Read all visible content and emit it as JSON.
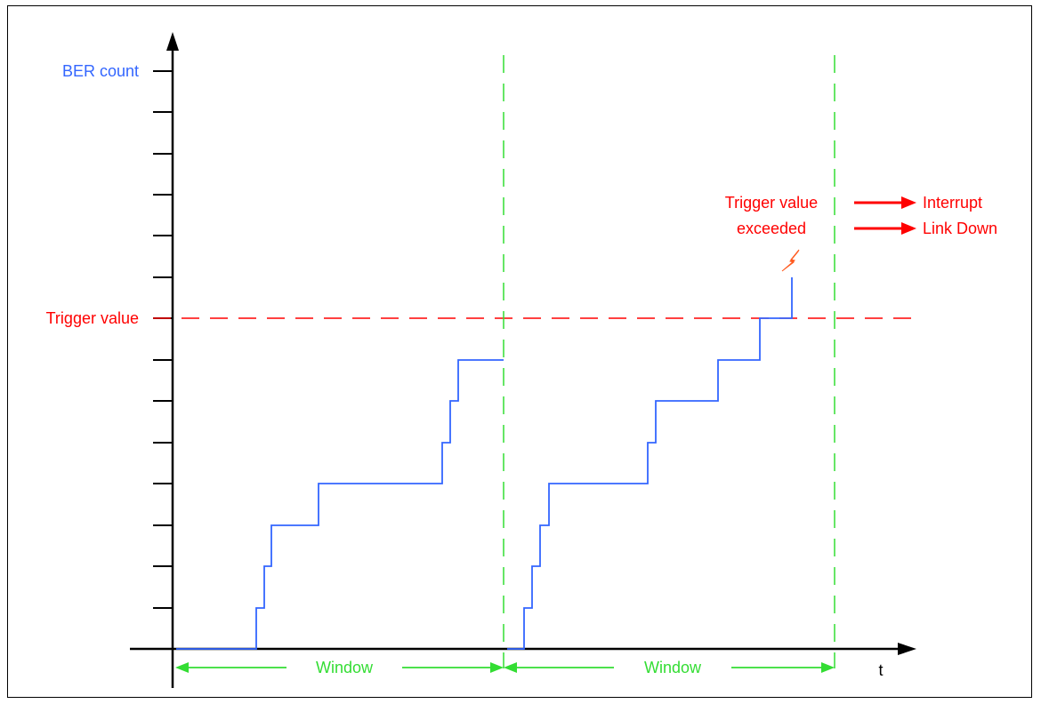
{
  "colors": {
    "axis": "#000000",
    "curve": "#3366ff",
    "trigger": "#ff0000",
    "window": "#33dd33",
    "lightning": "#ff5a1f"
  },
  "labels": {
    "y_axis": "BER count",
    "x_axis": "t",
    "trigger_line": "Trigger value",
    "exceeded_line1": "Trigger value",
    "exceeded_line2": "exceeded",
    "action_interrupt": "Interrupt",
    "action_link_down": "Link Down",
    "window_1": "Window",
    "window_2": "Window"
  },
  "icons": {
    "exceeded": "lightning-bolt-icon",
    "action": "right-arrow-icon"
  },
  "ber_steps": {
    "window_1": [
      [
        0,
        0
      ],
      [
        1,
        1
      ],
      [
        2,
        2
      ],
      [
        3,
        3
      ],
      [
        4,
        4
      ],
      [
        5,
        4
      ],
      [
        6,
        5
      ],
      [
        7,
        6
      ],
      [
        8,
        7
      ]
    ],
    "window_2": [
      [
        0,
        0
      ],
      [
        1,
        1
      ],
      [
        2,
        2
      ],
      [
        3,
        3
      ],
      [
        4,
        4
      ],
      [
        5,
        5
      ],
      [
        6,
        6
      ],
      [
        7,
        7
      ],
      [
        8,
        8
      ],
      [
        9,
        9
      ]
    ]
  },
  "trigger_level": 8
}
